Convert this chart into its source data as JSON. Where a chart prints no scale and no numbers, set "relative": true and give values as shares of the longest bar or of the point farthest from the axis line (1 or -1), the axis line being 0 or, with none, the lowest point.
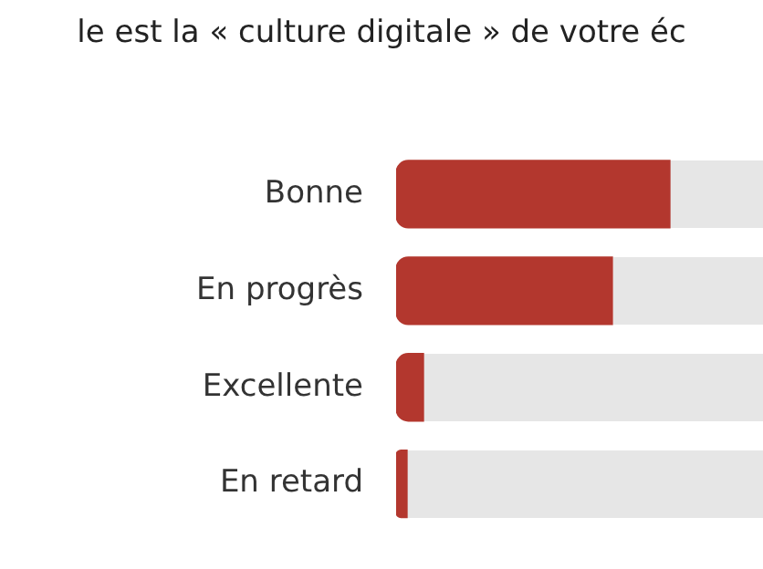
{
  "chart_data": {
    "type": "bar",
    "orientation": "horizontal",
    "relative": true,
    "title": "le est la « culture digitale » de votre éc",
    "categories": [
      "Bonne",
      "En progrès",
      "Excellente",
      "En retard"
    ],
    "values": [
      1,
      0.79,
      0.1,
      0.04
    ],
    "color": "#b3372e",
    "grid": false,
    "legend": false
  }
}
